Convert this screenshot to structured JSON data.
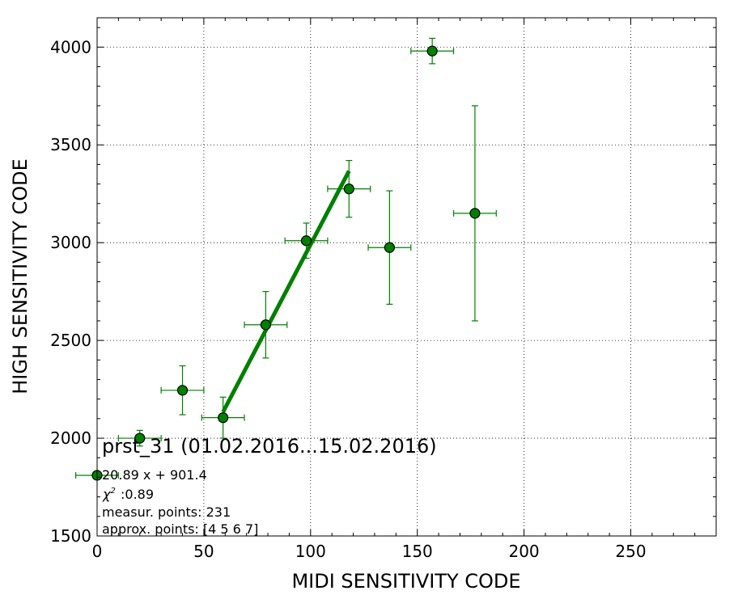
{
  "chart_data": {
    "type": "scatter",
    "xlabel": "MIDI SENSITIVITY CODE",
    "ylabel": "HIGH SENSITIVITY CODE",
    "xlim": [
      0,
      290
    ],
    "ylim": [
      1500,
      4150
    ],
    "xticks": [
      0,
      50,
      100,
      150,
      200,
      250
    ],
    "yticks": [
      1500,
      2000,
      2500,
      3000,
      3500,
      4000
    ],
    "grid": true,
    "marker_color": "#008000",
    "line_color": "#008000",
    "points": [
      {
        "x": 0,
        "y": 1810,
        "xerr": 10,
        "yerr": 0
      },
      {
        "x": 20,
        "y": 2000,
        "xerr": 10,
        "yerr": 40
      },
      {
        "x": 40,
        "y": 2245,
        "xerr": 10,
        "yerr": 125
      },
      {
        "x": 59,
        "y": 2105,
        "xerr": 10,
        "yerr": 105
      },
      {
        "x": 79,
        "y": 2580,
        "xerr": 10,
        "yerr": 170
      },
      {
        "x": 98,
        "y": 3010,
        "xerr": 10,
        "yerr": 90
      },
      {
        "x": 118,
        "y": 3275,
        "xerr": 10,
        "yerr": 145
      },
      {
        "x": 137,
        "y": 2975,
        "xerr": 10,
        "yerr": 290
      },
      {
        "x": 157,
        "y": 3980,
        "xerr": 10,
        "yerr": 65
      },
      {
        "x": 177,
        "y": 3150,
        "xerr": 10,
        "yerr": 550
      }
    ],
    "fit": {
      "slope": 20.89,
      "intercept": 901.4,
      "x_range": [
        59,
        118
      ]
    },
    "annotations": {
      "title": "prst_31 (01.02.2016...15.02.2016)",
      "equation": "20.89 x + 901.4",
      "chi2": ":0.89",
      "measur_points": "measur. points: 231",
      "approx_points": "approx. points: [4 5 6 7]"
    }
  }
}
